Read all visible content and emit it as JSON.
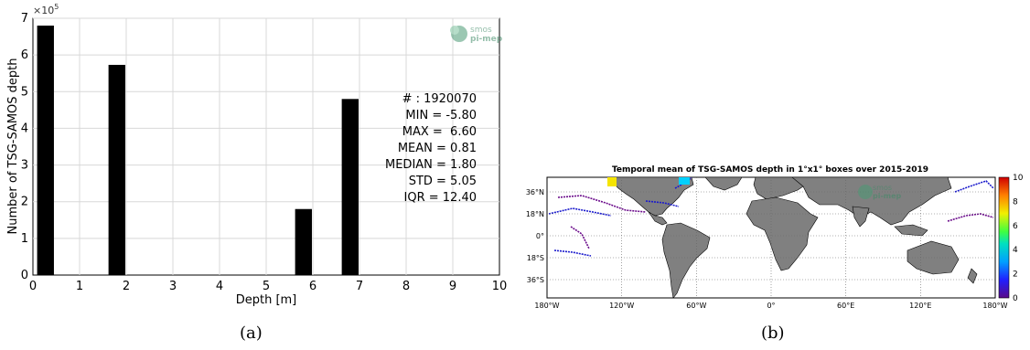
{
  "chart_data": [
    {
      "type": "bar",
      "panel_label": "(a)",
      "title": "",
      "xlabel": "Depth [m]",
      "ylabel": "Number of TSG-SAMOS depth",
      "y_multiplier": "×10",
      "y_multiplier_exp": "5",
      "xlim": [
        0,
        10
      ],
      "ylim": [
        0,
        7
      ],
      "x_ticks": [
        "0",
        "1",
        "2",
        "3",
        "4",
        "5",
        "6",
        "7",
        "8",
        "9",
        "10"
      ],
      "y_ticks": [
        "0",
        "1",
        "2",
        "3",
        "4",
        "5",
        "6",
        "7"
      ],
      "grid": true,
      "bar_width": 0.36,
      "bars": [
        {
          "x": 0.27,
          "value": 6.8
        },
        {
          "x": 1.8,
          "value": 5.73
        },
        {
          "x": 5.8,
          "value": 1.8
        },
        {
          "x": 6.8,
          "value": 4.8
        }
      ],
      "stats": [
        "# : 1920070",
        "MIN = -5.80",
        "MAX =  6.60",
        "MEAN = 0.81",
        "MEDIAN = 1.80",
        "STD = 5.05",
        "IQR = 12.40"
      ],
      "logo": {
        "line1": "smos",
        "line2": "pi-mep"
      },
      "bar_color": "#000000"
    },
    {
      "type": "heatmap",
      "panel_label": "(b)",
      "title": "Temporal mean of TSG-SAMOS depth in 1°x1° boxes over 2015-2019",
      "x_ticks": [
        "180°W",
        "120°W",
        "60°W",
        "0°",
        "60°E",
        "120°E",
        "180°W"
      ],
      "y_ticks": [
        "36°N",
        "18°N",
        "0°",
        "18°S",
        "36°S"
      ],
      "colorbar_ticks": [
        "0",
        "2",
        "4",
        "6",
        "8",
        "10"
      ],
      "colorbar_range": [
        0,
        10
      ],
      "land_color": "#808080",
      "logo": {
        "line1": "smos",
        "line2": "pi-mep"
      }
    }
  ]
}
